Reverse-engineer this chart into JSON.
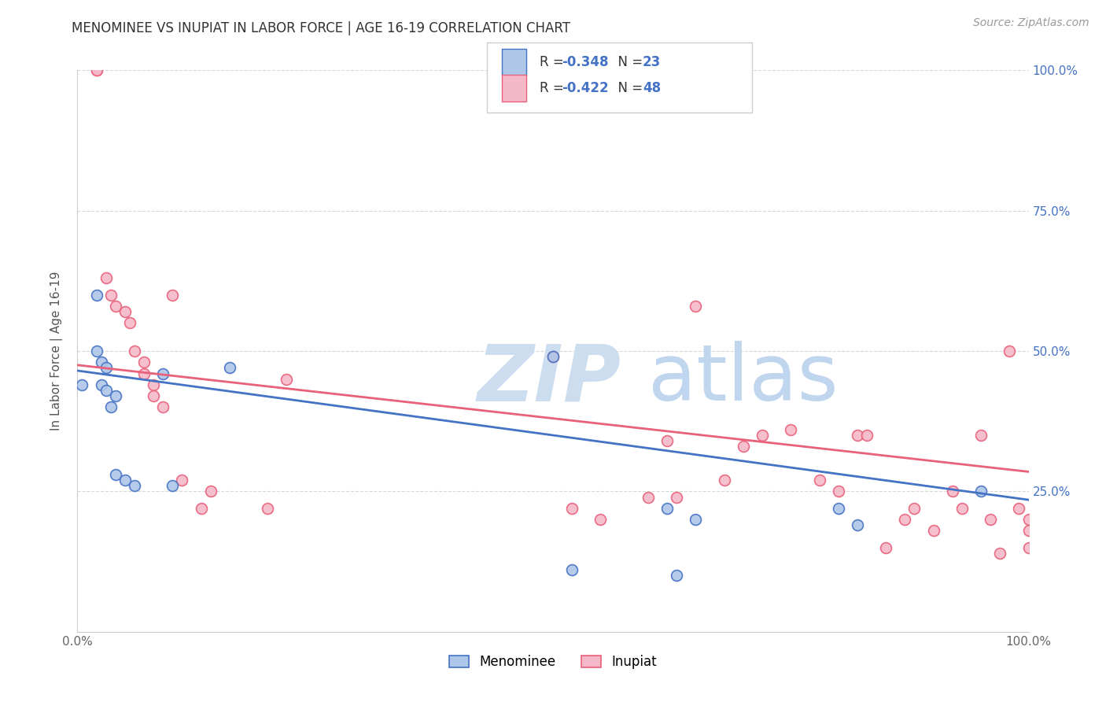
{
  "title": "MENOMINEE VS INUPIAT IN LABOR FORCE | AGE 16-19 CORRELATION CHART",
  "source": "Source: ZipAtlas.com",
  "ylabel": "In Labor Force | Age 16-19",
  "xlim": [
    0.0,
    1.0
  ],
  "ylim": [
    0.0,
    1.0
  ],
  "ytick_labels_right": [
    "100.0%",
    "75.0%",
    "50.0%",
    "25.0%"
  ],
  "ytick_positions_right": [
    1.0,
    0.75,
    0.5,
    0.25
  ],
  "grid_color": "#d8d8d8",
  "background_color": "#ffffff",
  "menominee_color": "#aec6e8",
  "inupiat_color": "#f5b8c8",
  "menominee_line_color": "#4472c4",
  "inupiat_line_color": "#e8607a",
  "menominee_R": "-0.348",
  "menominee_N": "23",
  "inupiat_R": "-0.422",
  "inupiat_N": "48",
  "menominee_scatter_x": [
    0.005,
    0.02,
    0.02,
    0.025,
    0.025,
    0.03,
    0.03,
    0.035,
    0.04,
    0.04,
    0.05,
    0.06,
    0.09,
    0.1,
    0.16,
    0.5,
    0.52,
    0.62,
    0.63,
    0.65,
    0.8,
    0.82,
    0.95
  ],
  "menominee_scatter_y": [
    0.44,
    0.6,
    0.5,
    0.48,
    0.44,
    0.47,
    0.43,
    0.4,
    0.42,
    0.28,
    0.27,
    0.26,
    0.46,
    0.26,
    0.47,
    0.49,
    0.11,
    0.22,
    0.1,
    0.2,
    0.22,
    0.19,
    0.25
  ],
  "inupiat_scatter_x": [
    0.02,
    0.02,
    0.03,
    0.035,
    0.04,
    0.05,
    0.055,
    0.06,
    0.07,
    0.07,
    0.08,
    0.08,
    0.09,
    0.1,
    0.11,
    0.13,
    0.14,
    0.2,
    0.22,
    0.5,
    0.52,
    0.55,
    0.6,
    0.62,
    0.63,
    0.65,
    0.68,
    0.7,
    0.72,
    0.75,
    0.78,
    0.8,
    0.82,
    0.83,
    0.85,
    0.87,
    0.88,
    0.9,
    0.92,
    0.93,
    0.95,
    0.96,
    0.97,
    0.98,
    0.99,
    1.0,
    1.0,
    1.0
  ],
  "inupiat_scatter_y": [
    1.0,
    1.0,
    0.63,
    0.6,
    0.58,
    0.57,
    0.55,
    0.5,
    0.48,
    0.46,
    0.44,
    0.42,
    0.4,
    0.6,
    0.27,
    0.22,
    0.25,
    0.22,
    0.45,
    0.49,
    0.22,
    0.2,
    0.24,
    0.34,
    0.24,
    0.58,
    0.27,
    0.33,
    0.35,
    0.36,
    0.27,
    0.25,
    0.35,
    0.35,
    0.15,
    0.2,
    0.22,
    0.18,
    0.25,
    0.22,
    0.35,
    0.2,
    0.14,
    0.5,
    0.22,
    0.2,
    0.18,
    0.15
  ],
  "marker_size": 100,
  "marker_linewidth": 1.2
}
